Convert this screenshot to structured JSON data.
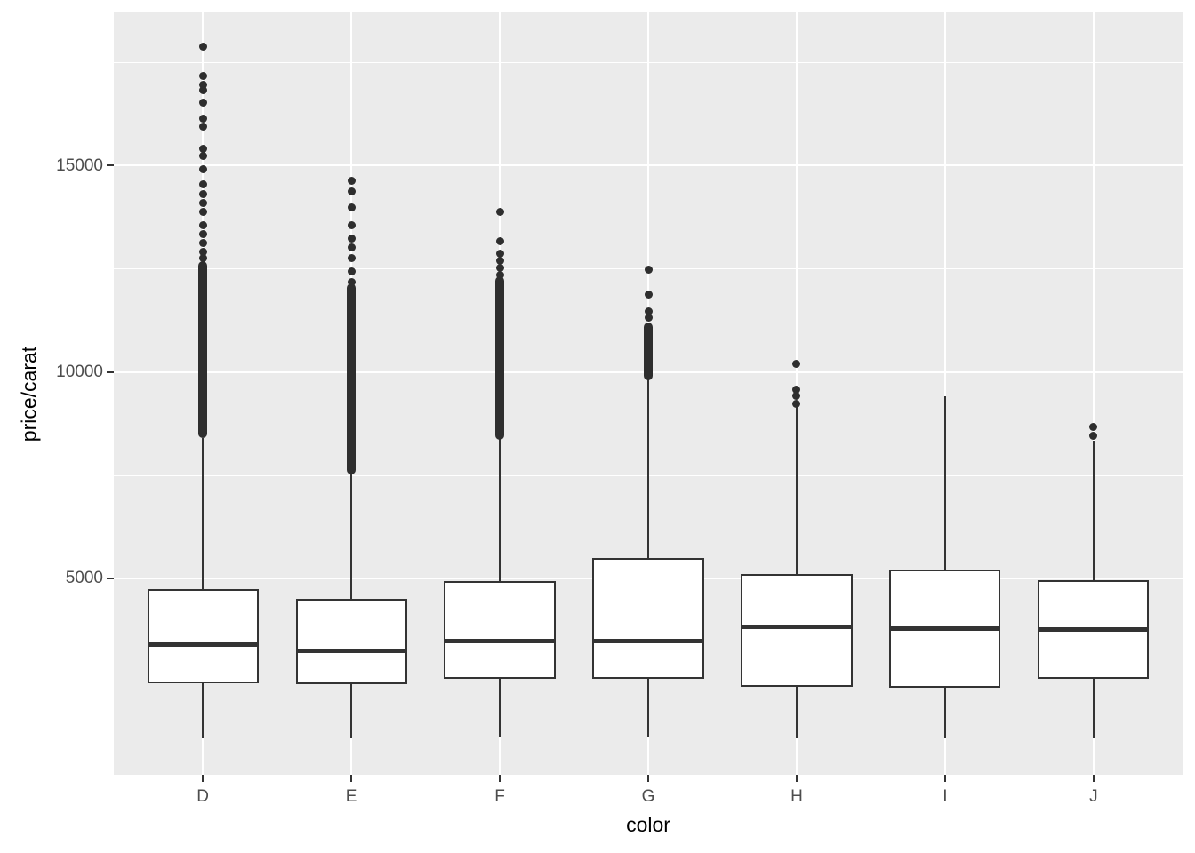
{
  "figure": {
    "background": "#FFFFFF",
    "panel_background": "#EBEBEB",
    "grid_color": "#FFFFFF",
    "box_stroke_color": "#333333",
    "box_fill_color": "#FFFFFF",
    "outlier_color": "#2E2E2E",
    "tick_label_color": "#4D4D4D",
    "axis_title_color": "#000000"
  },
  "chart_data": {
    "type": "boxplot",
    "title": "",
    "xlabel": "color",
    "ylabel": "price/carat",
    "categories": [
      "D",
      "E",
      "F",
      "G",
      "H",
      "I",
      "J"
    ],
    "y_ticks": [
      5000,
      10000,
      15000
    ],
    "y_tick_labels": [
      "5000",
      "10000",
      "15000"
    ],
    "y_minor_ticks": [
      2500,
      7500,
      12500,
      17500
    ],
    "ylim": [
      237,
      18710
    ],
    "grid": "major-and-minor-horizontal, major-vertical-per-category",
    "legend_position": "none",
    "series": [
      {
        "category": "D",
        "whisker_low": 1120,
        "q1": 2460,
        "median": 3390,
        "q3": 4740,
        "whisker_high": 8400,
        "outlier_band": [
          8490,
          12590
        ],
        "outliers": [
          12760,
          12900,
          13120,
          13340,
          13560,
          13880,
          14100,
          14310,
          14550,
          14910,
          15240,
          15410,
          15950,
          16140,
          16530,
          16820,
          16960,
          17170,
          17890
        ]
      },
      {
        "category": "E",
        "whisker_low": 1120,
        "q1": 2440,
        "median": 3240,
        "q3": 4505,
        "whisker_high": 7560,
        "outlier_band": [
          7590,
          12050
        ],
        "outliers": [
          12180,
          12440,
          12760,
          13020,
          13240,
          13560,
          13990,
          14370,
          14630
        ]
      },
      {
        "category": "F",
        "whisker_low": 1165,
        "q1": 2565,
        "median": 3470,
        "q3": 4940,
        "whisker_high": 8410,
        "outlier_band": [
          8450,
          12220
        ],
        "outliers": [
          12350,
          12520,
          12700,
          12870,
          13170,
          13880
        ]
      },
      {
        "category": "G",
        "whisker_low": 1165,
        "q1": 2565,
        "median": 3470,
        "q3": 5495,
        "whisker_high": 9850,
        "outlier_band": [
          9890,
          11100
        ],
        "outliers": [
          11310,
          11460,
          11880,
          12480
        ]
      },
      {
        "category": "H",
        "whisker_low": 1120,
        "q1": 2370,
        "median": 3815,
        "q3": 5110,
        "whisker_high": 9140,
        "outlier_band": null,
        "outliers": [
          9220,
          9420,
          9580,
          10190
        ]
      },
      {
        "category": "I",
        "whisker_low": 1130,
        "q1": 2350,
        "median": 3770,
        "q3": 5215,
        "whisker_high": 9400,
        "outlier_band": null,
        "outliers": []
      },
      {
        "category": "J",
        "whisker_low": 1120,
        "q1": 2565,
        "median": 3750,
        "q3": 4960,
        "whisker_high": 8340,
        "outlier_band": null,
        "outliers": [
          8450,
          8660
        ]
      }
    ]
  }
}
